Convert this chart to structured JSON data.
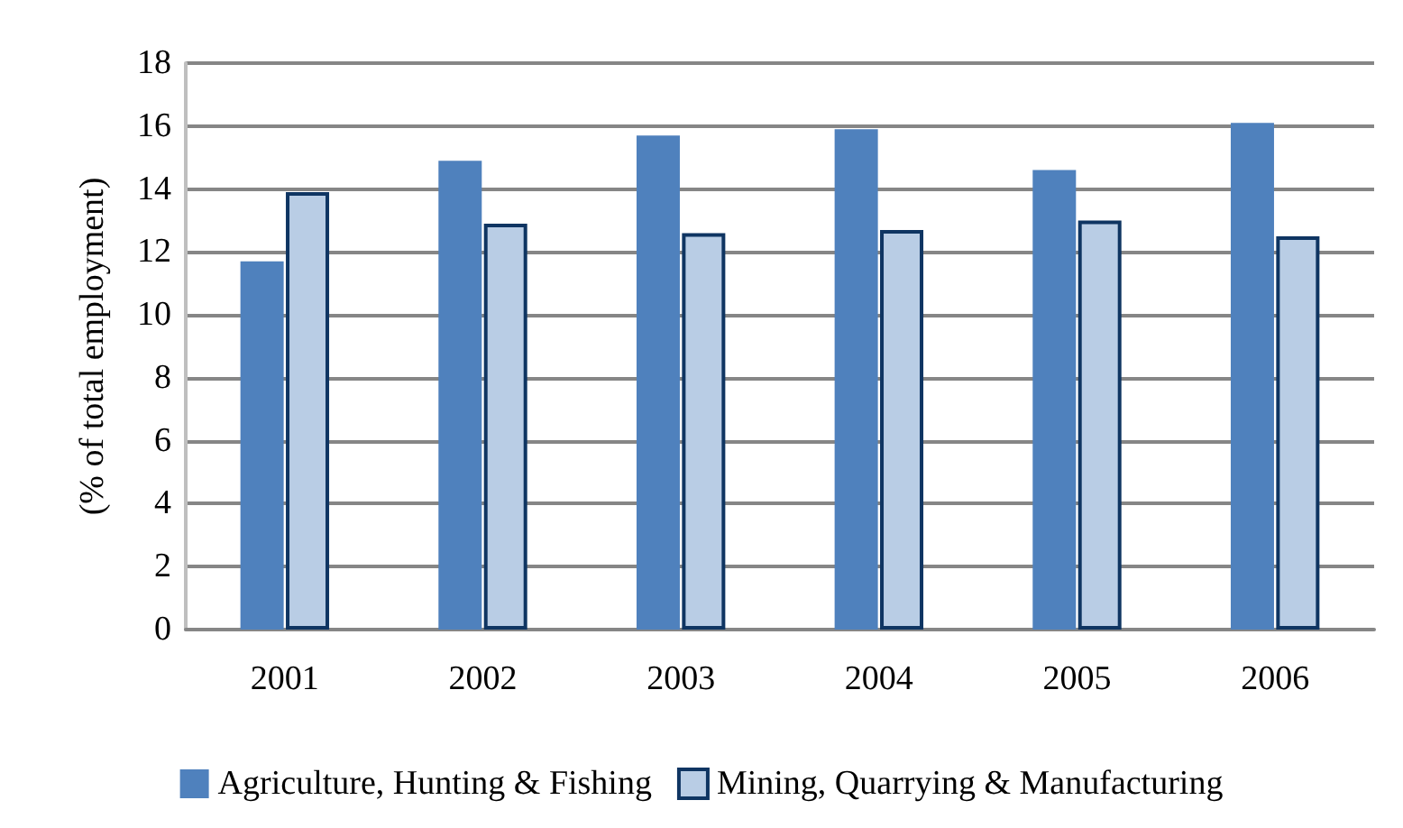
{
  "chart_data": {
    "type": "bar",
    "ylabel": "(% of total employment)",
    "categories": [
      "2001",
      "2002",
      "2003",
      "2004",
      "2005",
      "2006"
    ],
    "series": [
      {
        "name": "Agriculture, Hunting & Fishing",
        "color": "#4f81bd",
        "values": [
          11.7,
          14.9,
          15.7,
          15.9,
          14.6,
          16.1
        ]
      },
      {
        "name": "Mining, Quarrying & Manufacturing",
        "color": "#b9cde5",
        "values": [
          13.9,
          12.9,
          12.6,
          12.7,
          13.0,
          12.5
        ]
      }
    ],
    "ylim": [
      0,
      18
    ],
    "yticks": [
      0,
      2,
      4,
      6,
      8,
      10,
      12,
      14,
      16,
      18
    ],
    "grid": "y",
    "legend": "bottom"
  }
}
